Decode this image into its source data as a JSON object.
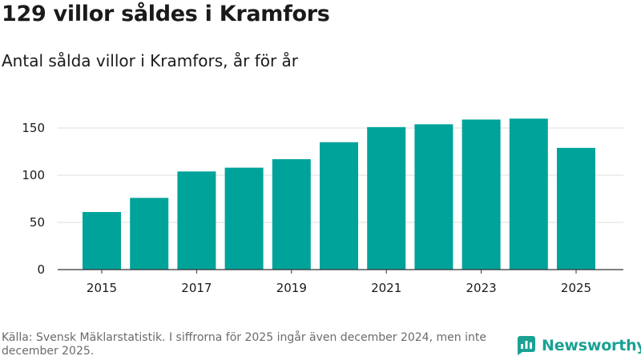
{
  "header": {
    "title": "129 villor såldes i Kramfors",
    "subtitle": "Antal sålda villor i Kramfors, år för år"
  },
  "footer": {
    "source": "Källa: Svensk Mäklarstatistik. I siffrorna för 2025 ingår även december 2024, men inte december 2025.",
    "brand": "Newsworthy",
    "brand_icon": "newsworthy-logo-icon"
  },
  "colors": {
    "bar": "#00a39a",
    "grid": "#dcdcdc",
    "axis": "#333333",
    "brand": "#1aa194"
  },
  "chart_data": {
    "type": "bar",
    "title": "Antal sålda villor i Kramfors, år för år",
    "xlabel": "",
    "ylabel": "",
    "categories": [
      "2015",
      "2016",
      "2017",
      "2018",
      "2019",
      "2020",
      "2021",
      "2022",
      "2023",
      "2024",
      "2025"
    ],
    "values": [
      61,
      76,
      104,
      108,
      117,
      135,
      151,
      154,
      159,
      160,
      129
    ],
    "x_tick_labels": [
      "2015",
      "2017",
      "2019",
      "2021",
      "2023",
      "2025"
    ],
    "y_ticks": [
      0,
      50,
      100,
      150
    ],
    "ylim": [
      0,
      167
    ],
    "grid": true,
    "legend": "none"
  }
}
